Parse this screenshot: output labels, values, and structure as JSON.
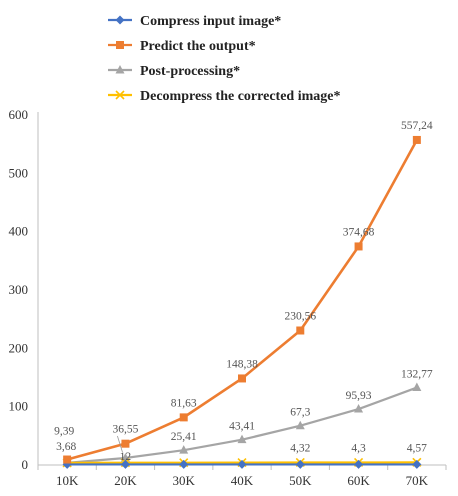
{
  "chart_data": {
    "type": "line",
    "categories": [
      "10K",
      "20K",
      "30K",
      "40K",
      "50K",
      "60K",
      "70K"
    ],
    "ylim": [
      0,
      600
    ],
    "yticks": [
      0,
      100,
      200,
      300,
      400,
      500,
      600
    ],
    "grid": false,
    "legend_position": "top",
    "series": [
      {
        "name": "Compress input image*",
        "color": "#4472C4",
        "marker": "diamond",
        "values": [
          1,
          1,
          1,
          1,
          1,
          1,
          1
        ],
        "labels": []
      },
      {
        "name": "Predict the output*",
        "color": "#ED7D31",
        "marker": "square",
        "values": [
          9.39,
          36.55,
          81.63,
          148.38,
          230.56,
          374.68,
          557.24
        ],
        "labels": [
          "9,39",
          "36,55",
          "81,63",
          "148,38",
          "230,56",
          "374,68",
          "557,24"
        ]
      },
      {
        "name": "Post-processing*",
        "color": "#A5A5A5",
        "marker": "triangle",
        "values": [
          3.68,
          12,
          25.41,
          43.41,
          67.3,
          95.93,
          132.77
        ],
        "labels": [
          "3,68",
          "12",
          "25,41",
          "43,41",
          "67,3",
          "95,93",
          "132,77"
        ]
      },
      {
        "name": "Decompress the corrected image*",
        "color": "#FFC000",
        "marker": "x",
        "values": [
          3.6,
          3.9,
          4.0,
          4.1,
          4.32,
          4.3,
          4.57
        ],
        "labels": [
          "",
          "",
          "",
          "",
          "4,32",
          "4,3",
          "4,57"
        ]
      }
    ]
  }
}
